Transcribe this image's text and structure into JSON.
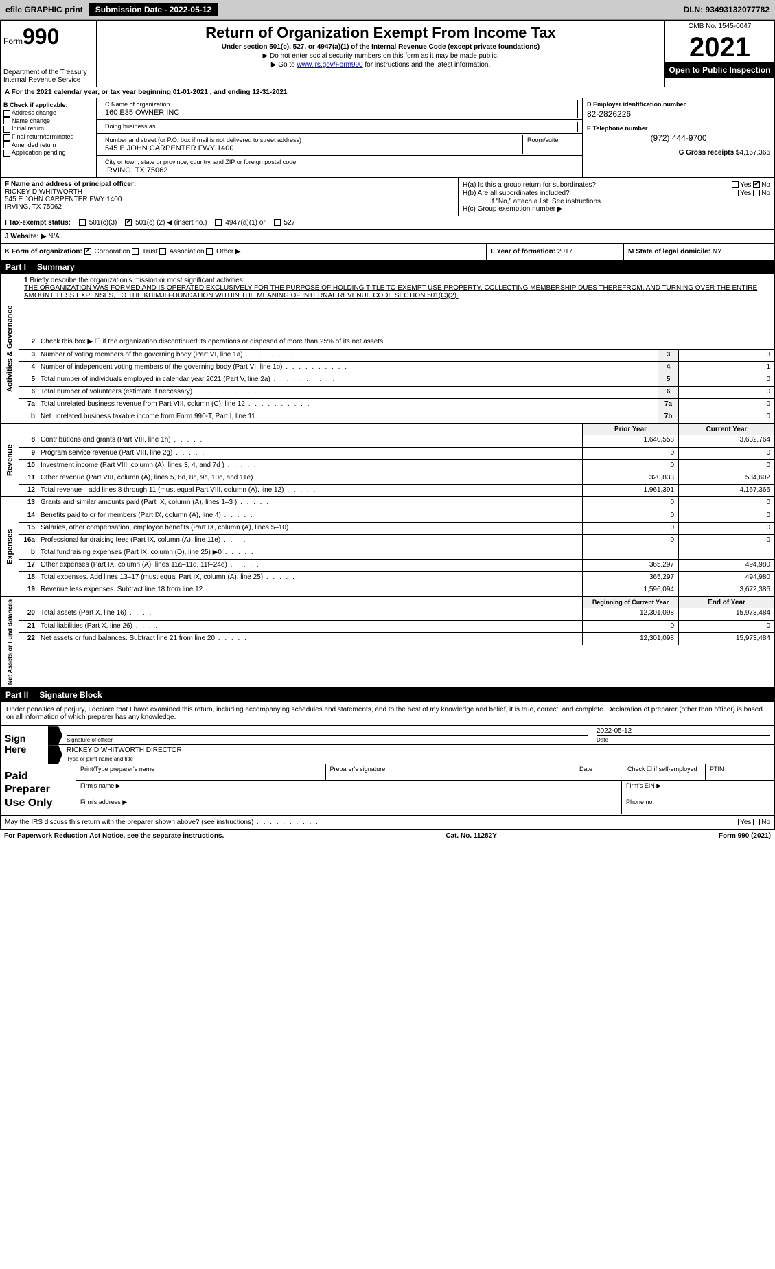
{
  "topbar": {
    "efile": "efile GRAPHIC print",
    "submission_label": "Submission Date - 2022-05-12",
    "dln": "DLN: 93493132077782"
  },
  "header": {
    "form_prefix": "Form",
    "form_number": "990",
    "dept": "Department of the Treasury",
    "irs": "Internal Revenue Service",
    "title": "Return of Organization Exempt From Income Tax",
    "subtitle": "Under section 501(c), 527, or 4947(a)(1) of the Internal Revenue Code (except private foundations)",
    "note1": "▶ Do not enter social security numbers on this form as it may be made public.",
    "note2_prefix": "▶ Go to ",
    "note2_link": "www.irs.gov/Form990",
    "note2_suffix": " for instructions and the latest information.",
    "omb": "OMB No. 1545-0047",
    "year": "2021",
    "open_public": "Open to Public Inspection"
  },
  "row_a": "A For the 2021 calendar year, or tax year beginning 01-01-2021    , and ending 12-31-2021",
  "col_b": {
    "header": "B Check if applicable:",
    "items": [
      "Address change",
      "Name change",
      "Initial return",
      "Final return/terminated",
      "Amended return",
      "Application pending"
    ]
  },
  "col_c": {
    "name_label": "C Name of organization",
    "name": "160 E35 OWNER INC",
    "dba_label": "Doing business as",
    "dba": "",
    "street_label": "Number and street (or P.O. box if mail is not delivered to street address)",
    "room_label": "Room/suite",
    "street": "545 E JOHN CARPENTER FWY 1400",
    "city_label": "City or town, state or province, country, and ZIP or foreign postal code",
    "city": "IRVING, TX  75062"
  },
  "col_d": {
    "ein_label": "D Employer identification number",
    "ein": "82-2826226",
    "phone_label": "E Telephone number",
    "phone": "(972) 444-9700",
    "gross_label": "G Gross receipts $",
    "gross": "4,167,366"
  },
  "col_f": {
    "label": "F Name and address of principal officer:",
    "name": "RICKEY D WHITWORTH",
    "street": "545 E JOHN CARPENTER FWY 1400",
    "city": "IRVING, TX  75062"
  },
  "col_h": {
    "ha_label": "H(a)  Is this a group return for subordinates?",
    "ha_yes": "Yes",
    "ha_no": "No",
    "hb_label": "H(b)  Are all subordinates included?",
    "hb_yes": "Yes",
    "hb_no": "No",
    "hb_note": "If \"No,\" attach a list. See instructions.",
    "hc_label": "H(c)  Group exemption number ▶"
  },
  "tax_status": {
    "label": "I  Tax-exempt status:",
    "opt1": "501(c)(3)",
    "opt2_pre": "501(c) (",
    "opt2_val": "2",
    "opt2_post": ") ◀ (insert no.)",
    "opt3": "4947(a)(1) or",
    "opt4": "527"
  },
  "website": {
    "label": "J  Website: ▶",
    "value": "N/A"
  },
  "row_k": {
    "label": "K Form of organization:",
    "opts": [
      "Corporation",
      "Trust",
      "Association",
      "Other ▶"
    ],
    "l_label": "L Year of formation:",
    "l_val": "2017",
    "m_label": "M State of legal domicile:",
    "m_val": "NY"
  },
  "part1": {
    "num": "Part I",
    "title": "Summary"
  },
  "mission": {
    "num": "1",
    "label": "Briefly describe the organization's mission or most significant activities:",
    "text": "THE ORGANIZATION WAS FORMED AND IS OPERATED EXCLUSIVELY FOR THE PURPOSE OF HOLDING TITLE TO EXEMPT USE PROPERTY, COLLECTING MEMBERSHIP DUES THEREFROM, AND TURNING OVER THE ENTIRE AMOUNT, LESS EXPENSES, TO THE KHIMJI FOUNDATION WITHIN THE MEANING OF INTERNAL REVENUE CODE SECTION 501(C)(2)."
  },
  "side_labels": {
    "gov": "Activities & Governance",
    "rev": "Revenue",
    "exp": "Expenses",
    "net": "Net Assets or Fund Balances"
  },
  "gov_lines": [
    {
      "n": "2",
      "d": "Check this box ▶ ☐ if the organization discontinued its operations or disposed of more than 25% of its net assets."
    },
    {
      "n": "3",
      "d": "Number of voting members of the governing body (Part VI, line 1a)",
      "c": "3",
      "v": "3"
    },
    {
      "n": "4",
      "d": "Number of independent voting members of the governing body (Part VI, line 1b)",
      "c": "4",
      "v": "1"
    },
    {
      "n": "5",
      "d": "Total number of individuals employed in calendar year 2021 (Part V, line 2a)",
      "c": "5",
      "v": "0"
    },
    {
      "n": "6",
      "d": "Total number of volunteers (estimate if necessary)",
      "c": "6",
      "v": "0"
    },
    {
      "n": "7a",
      "d": "Total unrelated business revenue from Part VIII, column (C), line 12",
      "c": "7a",
      "v": "0"
    },
    {
      "n": "b",
      "d": "Net unrelated business taxable income from Form 990-T, Part I, line 11",
      "c": "7b",
      "v": "0"
    }
  ],
  "col_headers": {
    "prior": "Prior Year",
    "current": "Current Year"
  },
  "rev_lines": [
    {
      "n": "8",
      "d": "Contributions and grants (Part VIII, line 1h)",
      "p": "1,640,558",
      "c": "3,632,764"
    },
    {
      "n": "9",
      "d": "Program service revenue (Part VIII, line 2g)",
      "p": "0",
      "c": "0"
    },
    {
      "n": "10",
      "d": "Investment income (Part VIII, column (A), lines 3, 4, and 7d )",
      "p": "0",
      "c": "0"
    },
    {
      "n": "11",
      "d": "Other revenue (Part VIII, column (A), lines 5, 6d, 8c, 9c, 10c, and 11e)",
      "p": "320,833",
      "c": "534,602"
    },
    {
      "n": "12",
      "d": "Total revenue—add lines 8 through 11 (must equal Part VIII, column (A), line 12)",
      "p": "1,961,391",
      "c": "4,167,366"
    }
  ],
  "exp_lines": [
    {
      "n": "13",
      "d": "Grants and similar amounts paid (Part IX, column (A), lines 1–3 )",
      "p": "0",
      "c": "0"
    },
    {
      "n": "14",
      "d": "Benefits paid to or for members (Part IX, column (A), line 4)",
      "p": "0",
      "c": "0"
    },
    {
      "n": "15",
      "d": "Salaries, other compensation, employee benefits (Part IX, column (A), lines 5–10)",
      "p": "0",
      "c": "0"
    },
    {
      "n": "16a",
      "d": "Professional fundraising fees (Part IX, column (A), line 11e)",
      "p": "0",
      "c": "0"
    },
    {
      "n": "b",
      "d": "Total fundraising expenses (Part IX, column (D), line 25) ▶0",
      "p": "",
      "c": ""
    },
    {
      "n": "17",
      "d": "Other expenses (Part IX, column (A), lines 11a–11d, 11f–24e)",
      "p": "365,297",
      "c": "494,980"
    },
    {
      "n": "18",
      "d": "Total expenses. Add lines 13–17 (must equal Part IX, column (A), line 25)",
      "p": "365,297",
      "c": "494,980"
    },
    {
      "n": "19",
      "d": "Revenue less expenses. Subtract line 18 from line 12",
      "p": "1,596,094",
      "c": "3,672,386"
    }
  ],
  "net_headers": {
    "begin": "Beginning of Current Year",
    "end": "End of Year"
  },
  "net_lines": [
    {
      "n": "20",
      "d": "Total assets (Part X, line 16)",
      "p": "12,301,098",
      "c": "15,973,484"
    },
    {
      "n": "21",
      "d": "Total liabilities (Part X, line 26)",
      "p": "0",
      "c": "0"
    },
    {
      "n": "22",
      "d": "Net assets or fund balances. Subtract line 21 from line 20",
      "p": "12,301,098",
      "c": "15,973,484"
    }
  ],
  "part2": {
    "num": "Part II",
    "title": "Signature Block"
  },
  "sig_intro": "Under penalties of perjury, I declare that I have examined this return, including accompanying schedules and statements, and to the best of my knowledge and belief, it is true, correct, and complete. Declaration of preparer (other than officer) is based on all information of which preparer has any knowledge.",
  "sign_here": "Sign Here",
  "sig": {
    "sig_label": "Signature of officer",
    "date_label": "Date",
    "date_val": "2022-05-12",
    "name_val": "RICKEY D WHITWORTH  DIRECTOR",
    "name_label": "Type or print name and title"
  },
  "paid": {
    "title": "Paid Preparer Use Only",
    "h1": "Print/Type preparer's name",
    "h2": "Preparer's signature",
    "h3": "Date",
    "h4_pre": "Check ☐ if self-employed",
    "h5": "PTIN",
    "firm_name": "Firm's name  ▶",
    "firm_ein": "Firm's EIN ▶",
    "firm_addr": "Firm's address ▶",
    "phone": "Phone no."
  },
  "footer": {
    "discuss": "May the IRS discuss this return with the preparer shown above? (see instructions)",
    "yes": "Yes",
    "no": "No",
    "paperwork": "For Paperwork Reduction Act Notice, see the separate instructions.",
    "cat": "Cat. No. 11282Y",
    "form": "Form 990 (2021)"
  }
}
